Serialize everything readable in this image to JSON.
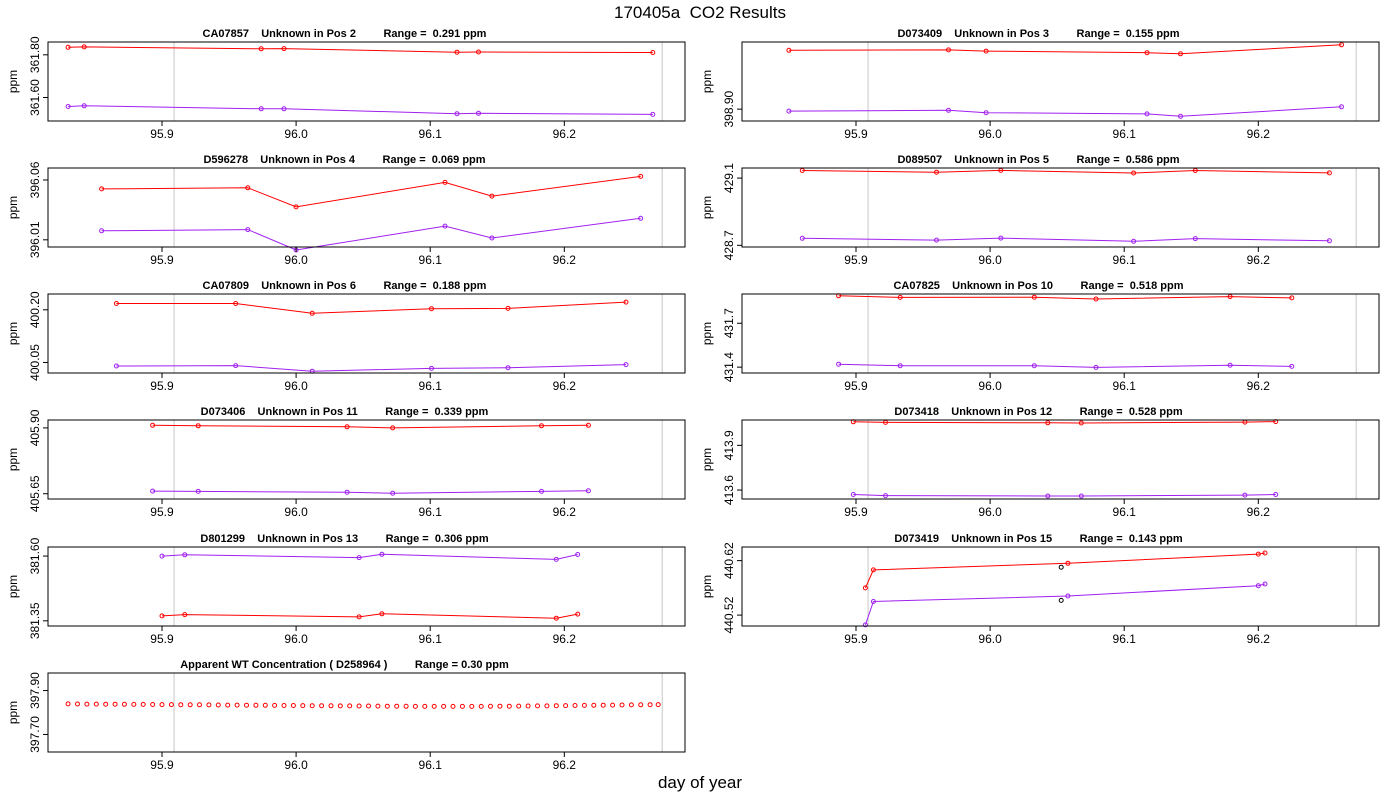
{
  "title": "170405a  CO2 Results",
  "xlabel": "day of year",
  "ylabel": "ppm",
  "colors": {
    "upper": "#ff0000",
    "lower": "#a020f0",
    "ref": "#c8c8c8",
    "extra": "#000000"
  },
  "chart_data": [
    {
      "type": "line",
      "title": "CA07857    Unknown in Pos 2         Range =  0.291 ppm",
      "xlim": [
        95.815,
        96.29
      ],
      "ylim": [
        361.49,
        361.86
      ],
      "xticks": [
        95.9,
        96.0,
        96.1,
        96.2
      ],
      "xtick_labels": [
        "95.9",
        "96.0",
        "96.1",
        "96.2"
      ],
      "yticks": [
        361.6,
        361.8
      ],
      "ytick_labels": [
        "361.60",
        "361.80"
      ],
      "ref_lines": [
        95.909,
        96.273
      ],
      "series": [
        {
          "name": "upper",
          "color": "#ff0000",
          "x": [
            95.83,
            95.842,
            95.974,
            95.991,
            96.12,
            96.136,
            96.266
          ],
          "y": [
            361.835,
            361.837,
            361.828,
            361.829,
            361.812,
            361.813,
            361.811
          ]
        },
        {
          "name": "lower",
          "color": "#a020f0",
          "x": [
            95.83,
            95.842,
            95.974,
            95.991,
            96.12,
            96.136,
            96.266
          ],
          "y": [
            361.558,
            361.561,
            361.547,
            361.547,
            361.524,
            361.526,
            361.521
          ]
        }
      ]
    },
    {
      "type": "line",
      "title": "D073409    Unknown in Pos 3         Range =  0.155 ppm",
      "xlim": [
        95.815,
        96.29
      ],
      "ylim": [
        398.87,
        399.07
      ],
      "xticks": [
        95.9,
        96.0,
        96.1,
        96.2
      ],
      "xtick_labels": [
        "95.9",
        "96.0",
        "96.1",
        "96.2"
      ],
      "yticks": [
        398.9
      ],
      "ytick_labels": [
        "398.90"
      ],
      "ref_lines": [
        95.909,
        96.273
      ],
      "series": [
        {
          "name": "upper",
          "color": "#ff0000",
          "x": [
            95.85,
            95.969,
            95.997,
            96.117,
            96.142,
            96.262
          ],
          "y": [
            399.049,
            399.05,
            399.047,
            399.043,
            399.04,
            399.063
          ]
        },
        {
          "name": "lower",
          "color": "#a020f0",
          "x": [
            95.85,
            95.969,
            95.997,
            96.117,
            96.142,
            96.262
          ],
          "y": [
            398.895,
            398.897,
            398.891,
            398.888,
            398.882,
            398.906
          ]
        }
      ]
    },
    {
      "type": "line",
      "title": "D596278    Unknown in Pos 4         Range =  0.069 ppm",
      "xlim": [
        95.815,
        96.29
      ],
      "ylim": [
        396.004,
        396.07
      ],
      "xticks": [
        95.9,
        96.0,
        96.1,
        96.2
      ],
      "xtick_labels": [
        "95.9",
        "96.0",
        "96.1",
        "96.2"
      ],
      "yticks": [
        396.01,
        396.06
      ],
      "ytick_labels": [
        "396.01",
        "396.06"
      ],
      "ref_lines": [
        95.909,
        96.273
      ],
      "series": [
        {
          "name": "upper",
          "color": "#ff0000",
          "x": [
            95.855,
            95.964,
            96.0,
            96.111,
            96.146,
            96.257
          ],
          "y": [
            396.0525,
            396.0535,
            396.0375,
            396.058,
            396.0465,
            396.063
          ]
        },
        {
          "name": "lower",
          "color": "#a020f0",
          "x": [
            95.855,
            95.964,
            96.0,
            96.111,
            96.146,
            96.257
          ],
          "y": [
            396.0175,
            396.0185,
            396.0015,
            396.0215,
            396.0115,
            396.028
          ]
        }
      ]
    },
    {
      "type": "line",
      "title": "D089507    Unknown in Pos 5         Range =  0.586 ppm",
      "xlim": [
        95.815,
        96.29
      ],
      "ylim": [
        428.69,
        429.16
      ],
      "xticks": [
        95.9,
        96.0,
        96.1,
        96.2
      ],
      "xtick_labels": [
        "95.9",
        "96.0",
        "96.1",
        "96.2"
      ],
      "yticks": [
        428.7,
        429.1
      ],
      "ytick_labels": [
        "428.7",
        "429.1"
      ],
      "ref_lines": [
        95.909,
        96.273
      ],
      "series": [
        {
          "name": "upper",
          "color": "#ff0000",
          "x": [
            95.86,
            95.96,
            96.008,
            96.107,
            96.153,
            96.253
          ],
          "y": [
            429.145,
            429.135,
            429.146,
            429.13,
            429.145,
            429.131
          ]
        },
        {
          "name": "lower",
          "color": "#a020f0",
          "x": [
            95.86,
            95.96,
            96.008,
            96.107,
            96.153,
            96.253
          ],
          "y": [
            428.742,
            428.731,
            428.743,
            428.724,
            428.74,
            428.727
          ]
        }
      ]
    },
    {
      "type": "line",
      "title": "CA07809    Unknown in Pos 6         Range =  0.188 ppm",
      "xlim": [
        95.815,
        96.29
      ],
      "ylim": [
        400.02,
        400.245
      ],
      "xticks": [
        95.9,
        96.0,
        96.1,
        96.2
      ],
      "xtick_labels": [
        "95.9",
        "96.0",
        "96.1",
        "96.2"
      ],
      "yticks": [
        400.05,
        400.2
      ],
      "ytick_labels": [
        "400.05",
        "400.20"
      ],
      "ref_lines": [
        95.909,
        96.273
      ],
      "series": [
        {
          "name": "upper",
          "color": "#ff0000",
          "x": [
            95.866,
            95.955,
            96.012,
            96.101,
            96.158,
            96.246
          ],
          "y": [
            400.218,
            400.218,
            400.19,
            400.203,
            400.204,
            400.222
          ]
        },
        {
          "name": "lower",
          "color": "#a020f0",
          "x": [
            95.866,
            95.955,
            96.012,
            96.101,
            96.158,
            96.246
          ],
          "y": [
            400.04,
            400.041,
            400.025,
            400.033,
            400.035,
            400.044
          ]
        }
      ]
    },
    {
      "type": "line",
      "title": "CA07825    Unknown in Pos 10         Range =  0.518 ppm",
      "xlim": [
        95.815,
        96.29
      ],
      "ylim": [
        431.36,
        431.9
      ],
      "xticks": [
        95.9,
        96.0,
        96.1,
        96.2
      ],
      "xtick_labels": [
        "95.9",
        "96.0",
        "96.1",
        "96.2"
      ],
      "yticks": [
        431.4,
        431.7
      ],
      "ytick_labels": [
        "431.4",
        "431.7"
      ],
      "ref_lines": [
        95.909,
        96.273
      ],
      "series": [
        {
          "name": "upper",
          "color": "#ff0000",
          "x": [
            95.887,
            95.933,
            96.033,
            96.079,
            96.179,
            96.225
          ],
          "y": [
            431.888,
            431.877,
            431.878,
            431.866,
            431.882,
            431.873
          ]
        },
        {
          "name": "lower",
          "color": "#a020f0",
          "x": [
            95.887,
            95.933,
            96.033,
            96.079,
            96.179,
            96.225
          ],
          "y": [
            431.42,
            431.41,
            431.41,
            431.398,
            431.413,
            431.405
          ]
        }
      ]
    },
    {
      "type": "line",
      "title": "D073406    Unknown in Pos 11         Range =  0.339 ppm",
      "xlim": [
        95.815,
        96.29
      ],
      "ylim": [
        405.63,
        405.93
      ],
      "xticks": [
        95.9,
        96.0,
        96.1,
        96.2
      ],
      "xtick_labels": [
        "95.9",
        "96.0",
        "96.1",
        "96.2"
      ],
      "yticks": [
        405.65,
        405.9
      ],
      "ytick_labels": [
        "405.65",
        "405.90"
      ],
      "ref_lines": [
        95.909,
        96.273
      ],
      "series": [
        {
          "name": "upper",
          "color": "#ff0000",
          "x": [
            95.893,
            95.927,
            96.038,
            96.072,
            96.183,
            96.218
          ],
          "y": [
            405.91,
            405.908,
            405.904,
            405.9,
            405.908,
            405.91
          ]
        },
        {
          "name": "lower",
          "color": "#a020f0",
          "x": [
            95.893,
            95.927,
            96.038,
            96.072,
            96.183,
            96.218
          ],
          "y": [
            405.66,
            405.659,
            405.656,
            405.652,
            405.659,
            405.661
          ]
        }
      ]
    },
    {
      "type": "line",
      "title": "D073418    Unknown in Pos 12         Range =  0.528 ppm",
      "xlim": [
        95.815,
        96.29
      ],
      "ylim": [
        413.54,
        414.07
      ],
      "xticks": [
        95.9,
        96.0,
        96.1,
        96.2
      ],
      "xtick_labels": [
        "95.9",
        "96.0",
        "96.1",
        "96.2"
      ],
      "yticks": [
        413.6,
        413.9
      ],
      "ytick_labels": [
        "413.6",
        "413.9"
      ],
      "ref_lines": [
        95.909,
        96.273
      ],
      "series": [
        {
          "name": "upper",
          "color": "#ff0000",
          "x": [
            95.898,
            95.922,
            96.043,
            96.068,
            96.19,
            96.213
          ],
          "y": [
            414.058,
            414.054,
            414.051,
            414.05,
            414.056,
            414.059
          ]
        },
        {
          "name": "lower",
          "color": "#a020f0",
          "x": [
            95.898,
            95.922,
            96.043,
            96.068,
            96.19,
            96.213
          ],
          "y": [
            413.57,
            413.563,
            413.56,
            413.56,
            413.566,
            413.57
          ]
        }
      ]
    },
    {
      "type": "line",
      "title": "D801299    Unknown in Pos 13         Range =  0.306 ppm",
      "xlim": [
        95.815,
        96.29
      ],
      "ylim": [
        381.33,
        381.635
      ],
      "xticks": [
        95.9,
        96.0,
        96.1,
        96.2
      ],
      "xtick_labels": [
        "95.9",
        "96.0",
        "96.1",
        "96.2"
      ],
      "yticks": [
        381.35,
        381.6
      ],
      "ytick_labels": [
        "381.35",
        "381.60"
      ],
      "ref_lines": [
        95.909,
        96.273
      ],
      "series": [
        {
          "name": "upper",
          "color": "#ff0000",
          "x": [
            95.9,
            95.917,
            96.047,
            96.064,
            96.194,
            96.21
          ],
          "y": [
            381.369,
            381.374,
            381.365,
            381.377,
            381.36,
            381.376
          ]
        },
        {
          "name": "lower",
          "color": "#a020f0",
          "x": [
            95.9,
            95.917,
            96.047,
            96.064,
            96.194,
            96.21
          ],
          "y": [
            381.6,
            381.605,
            381.594,
            381.607,
            381.587,
            381.606
          ]
        }
      ]
    },
    {
      "type": "line",
      "title": "D073419    Unknown in Pos 15         Range =  0.143 ppm",
      "xlim": [
        95.815,
        96.29
      ],
      "ylim": [
        440.5,
        440.645
      ],
      "xticks": [
        95.9,
        96.0,
        96.1,
        96.2
      ],
      "xtick_labels": [
        "95.9",
        "96.0",
        "96.1",
        "96.2"
      ],
      "yticks": [
        440.52,
        440.62
      ],
      "ytick_labels": [
        "440.52",
        "440.62"
      ],
      "ref_lines": [
        95.909,
        96.273
      ],
      "series": [
        {
          "name": "upper",
          "color": "#ff0000",
          "x": [
            95.907,
            95.913,
            96.058,
            96.2,
            96.205
          ],
          "y": [
            440.57,
            440.603,
            440.615,
            440.632,
            440.634
          ]
        },
        {
          "name": "lower",
          "color": "#a020f0",
          "x": [
            95.907,
            95.913,
            96.058,
            96.2,
            96.205
          ],
          "y": [
            440.502,
            440.545,
            440.555,
            440.574,
            440.577
          ]
        },
        {
          "name": "extra",
          "color": "#000000",
          "points_only": true,
          "x": [
            96.053,
            96.053
          ],
          "y": [
            440.608,
            440.547
          ]
        }
      ]
    },
    {
      "type": "scatter",
      "title": "Apparent WT Concentration ( D258964 )         Range = 0.30 ppm",
      "xlim": [
        95.815,
        96.29
      ],
      "ylim": [
        397.62,
        397.98
      ],
      "xticks": [
        95.9,
        96.0,
        96.1,
        96.2
      ],
      "xtick_labels": [
        "95.9",
        "96.0",
        "96.1",
        "96.2"
      ],
      "yticks": [
        397.7,
        397.9
      ],
      "ytick_labels": [
        "397.70",
        "397.90"
      ],
      "ref_lines": [
        95.909,
        96.273
      ],
      "series": [
        {
          "name": "WT concentration",
          "color": "#ff0000",
          "points_only": true,
          "x": [
            95.83,
            95.837,
            95.844,
            95.851,
            95.858,
            95.865,
            95.872,
            95.879,
            95.886,
            95.893,
            95.9,
            95.907,
            95.914,
            95.921,
            95.928,
            95.935,
            95.942,
            95.949,
            95.956,
            95.963,
            95.97,
            95.977,
            95.984,
            95.991,
            95.998,
            96.005,
            96.012,
            96.019,
            96.026,
            96.033,
            96.04,
            96.047,
            96.054,
            96.061,
            96.068,
            96.075,
            96.082,
            96.089,
            96.096,
            96.103,
            96.11,
            96.117,
            96.124,
            96.131,
            96.138,
            96.145,
            96.152,
            96.159,
            96.166,
            96.173,
            96.18,
            96.187,
            96.194,
            96.201,
            96.208,
            96.215,
            96.222,
            96.229,
            96.236,
            96.243,
            96.25,
            96.257,
            96.264,
            96.27
          ],
          "y": [
            397.839,
            397.8388,
            397.8385,
            397.8382,
            397.8379,
            397.8376,
            397.8373,
            397.837,
            397.8367,
            397.8364,
            397.8361,
            397.8358,
            397.8355,
            397.8352,
            397.8349,
            397.8346,
            397.8342,
            397.8339,
            397.8336,
            397.8333,
            397.833,
            397.8327,
            397.8324,
            397.8321,
            397.8318,
            397.8315,
            397.8312,
            397.8309,
            397.8306,
            397.8303,
            397.83,
            397.8297,
            397.8294,
            397.8291,
            397.8288,
            397.8285,
            397.8282,
            397.828,
            397.8278,
            397.8277,
            397.8276,
            397.8276,
            397.8277,
            397.8278,
            397.828,
            397.8282,
            397.8285,
            397.8288,
            397.8291,
            397.8295,
            397.8299,
            397.8303,
            397.8308,
            397.8313,
            397.8318,
            397.8323,
            397.8328,
            397.8333,
            397.8338,
            397.8343,
            397.8348,
            397.8353,
            397.8357,
            397.836
          ]
        }
      ]
    }
  ]
}
